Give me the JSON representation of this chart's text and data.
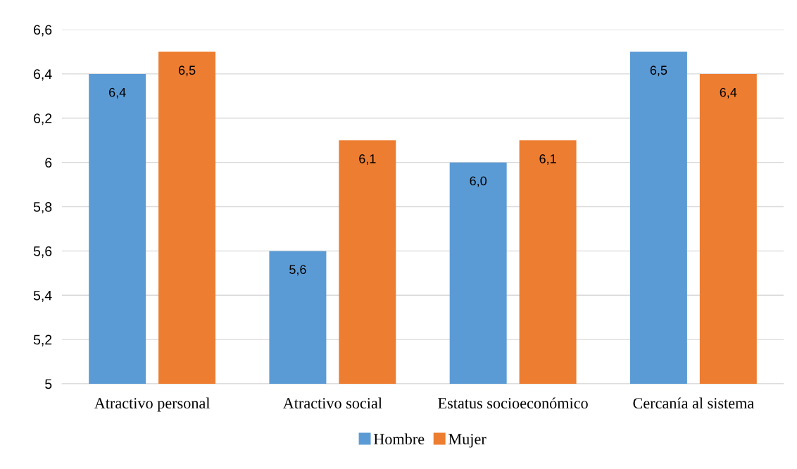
{
  "chart_data": {
    "type": "bar",
    "categories": [
      "Atractivo personal",
      "Atractivo social",
      "Estatus socioeconómico",
      "Cercanía al sistema"
    ],
    "series": [
      {
        "name": "Hombre",
        "color": "#5b9bd5",
        "values": [
          6.4,
          5.6,
          6.0,
          6.5
        ],
        "value_labels": [
          "6,4",
          "5,6",
          "6,0",
          "6,5"
        ]
      },
      {
        "name": "Mujer",
        "color": "#ed7d31",
        "values": [
          6.5,
          6.1,
          6.1,
          6.4
        ],
        "value_labels": [
          "6,5",
          "6,1",
          "6,1",
          "6,4"
        ]
      }
    ],
    "ylim": [
      5,
      6.6
    ],
    "yticks": [
      5,
      {
        "value": 5.2,
        "label": "5,2"
      },
      {
        "value": 5.4,
        "label": "5,4"
      },
      {
        "value": 5.6,
        "label": "5,6"
      },
      {
        "value": 5.8,
        "label": "5,8"
      },
      6,
      {
        "value": 6.2,
        "label": "6,2"
      },
      {
        "value": 6.4,
        "label": "6,4"
      },
      {
        "value": 6.6,
        "label": "6,6"
      }
    ],
    "grid": "y",
    "legend": "bottom"
  }
}
